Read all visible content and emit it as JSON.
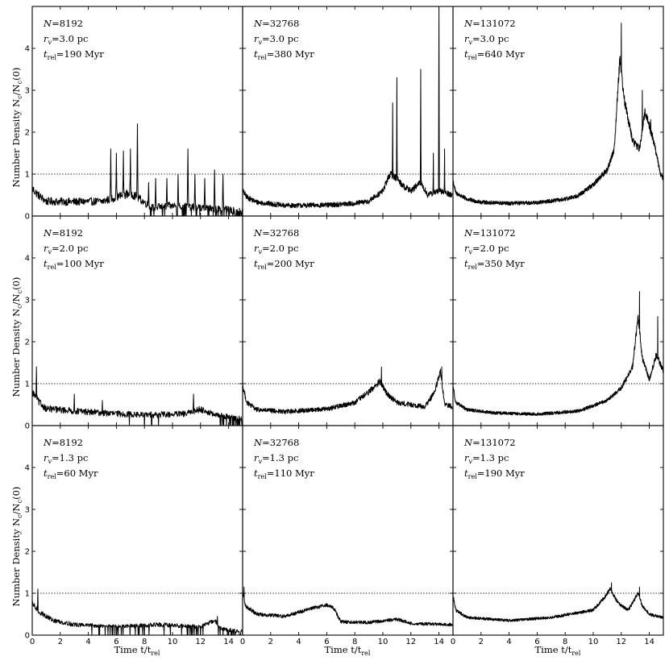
{
  "chart_data": {
    "type": "line",
    "layout": "3x3 grid, shared axes",
    "y_label_parts": [
      "Number Density ",
      "N",
      "c",
      "/",
      "N",
      "c",
      "(0)"
    ],
    "x_label_parts": [
      "Time ",
      "t",
      "/",
      "t",
      "rel"
    ],
    "xlim": [
      0,
      15
    ],
    "ylim": [
      0,
      5
    ],
    "x_ticks": [
      0,
      2,
      4,
      6,
      8,
      10,
      12,
      14
    ],
    "y_ticks": [
      0,
      1,
      2,
      3,
      4
    ],
    "reference_line": {
      "y": 1,
      "style": "dotted"
    },
    "annotation_parts": {
      "n": "N",
      "rv": "r",
      "rv_sub": "v",
      "t": "t",
      "t_sub": "rel"
    },
    "panels": [
      {
        "N": "=8192",
        "rv": "=3.0 pc",
        "trel": "=190 Myr",
        "profile": {
          "base": [
            [
              0,
              0.65
            ],
            [
              0.5,
              0.48
            ],
            [
              1,
              0.35
            ],
            [
              3,
              0.34
            ],
            [
              5,
              0.35
            ],
            [
              6,
              0.45
            ],
            [
              7,
              0.55
            ],
            [
              7.7,
              0.4
            ],
            [
              8.5,
              0.2
            ],
            [
              10,
              0.25
            ],
            [
              12,
              0.2
            ],
            [
              14,
              0.15
            ],
            [
              15,
              0.1
            ]
          ],
          "noise": 0.12,
          "density": 40,
          "floor": 0,
          "spikes": [
            [
              5.6,
              1.6
            ],
            [
              6.0,
              1.5
            ],
            [
              6.5,
              1.55
            ],
            [
              7.0,
              1.6
            ],
            [
              7.5,
              2.2
            ],
            [
              8.3,
              0.8
            ],
            [
              8.8,
              0.9
            ],
            [
              9.6,
              0.9
            ],
            [
              10.4,
              1.0
            ],
            [
              11.1,
              1.6
            ],
            [
              11.6,
              1.0
            ],
            [
              12.3,
              0.9
            ],
            [
              13.0,
              1.1
            ],
            [
              13.6,
              1.0
            ]
          ]
        }
      },
      {
        "N": "=32768",
        "rv": "=3.0 pc",
        "trel": "=380 Myr",
        "profile": {
          "base": [
            [
              0,
              0.6
            ],
            [
              0.3,
              0.45
            ],
            [
              1,
              0.33
            ],
            [
              3,
              0.25
            ],
            [
              6,
              0.26
            ],
            [
              8,
              0.3
            ],
            [
              9,
              0.35
            ],
            [
              10,
              0.6
            ],
            [
              10.5,
              1.0
            ],
            [
              11,
              0.9
            ],
            [
              11.5,
              0.7
            ],
            [
              12,
              0.6
            ],
            [
              12.7,
              0.8
            ],
            [
              13.2,
              0.5
            ],
            [
              14,
              0.6
            ],
            [
              15,
              0.5
            ]
          ],
          "noise": 0.08,
          "density": 60,
          "floor": 0.1,
          "spikes": [
            [
              10.7,
              2.7
            ],
            [
              11.0,
              3.3
            ],
            [
              12.7,
              3.5
            ],
            [
              13.6,
              1.5
            ],
            [
              14.0,
              5.0
            ],
            [
              14.4,
              1.6
            ]
          ]
        }
      },
      {
        "N": "=131072",
        "rv": "=3.0 pc",
        "trel": "=640 Myr",
        "profile": {
          "base": [
            [
              0,
              0.85
            ],
            [
              0.2,
              0.55
            ],
            [
              1,
              0.4
            ],
            [
              2,
              0.33
            ],
            [
              4,
              0.3
            ],
            [
              6,
              0.32
            ],
            [
              8,
              0.4
            ],
            [
              9,
              0.5
            ],
            [
              10,
              0.75
            ],
            [
              11,
              1.1
            ],
            [
              11.5,
              1.6
            ],
            [
              11.9,
              3.8
            ],
            [
              12.2,
              2.8
            ],
            [
              12.8,
              1.8
            ],
            [
              13.3,
              1.6
            ],
            [
              13.7,
              2.5
            ],
            [
              14.3,
              1.8
            ],
            [
              14.8,
              1.0
            ],
            [
              15,
              0.9
            ]
          ],
          "noise": 0.06,
          "density": 80,
          "floor": 0.15,
          "spikes": [
            [
              12.0,
              4.6
            ],
            [
              13.5,
              3.0
            ],
            [
              14.1,
              2.3
            ]
          ]
        }
      },
      {
        "N": "=8192",
        "rv": "=2.0 pc",
        "trel": "=100 Myr",
        "profile": {
          "base": [
            [
              0,
              0.8
            ],
            [
              0.5,
              0.55
            ],
            [
              1,
              0.4
            ],
            [
              3,
              0.35
            ],
            [
              5,
              0.3
            ],
            [
              8,
              0.25
            ],
            [
              11,
              0.28
            ],
            [
              12,
              0.4
            ],
            [
              13,
              0.25
            ],
            [
              15,
              0.15
            ]
          ],
          "noise": 0.1,
          "density": 40,
          "floor": 0,
          "spikes": [
            [
              0.3,
              1.4
            ],
            [
              3.0,
              0.75
            ],
            [
              5.0,
              0.6
            ],
            [
              11.5,
              0.75
            ]
          ]
        }
      },
      {
        "N": "=32768",
        "rv": "=2.0 pc",
        "trel": "=200 Myr",
        "profile": {
          "base": [
            [
              0,
              0.95
            ],
            [
              0.3,
              0.55
            ],
            [
              1,
              0.38
            ],
            [
              3,
              0.33
            ],
            [
              6,
              0.4
            ],
            [
              8,
              0.55
            ],
            [
              9,
              0.8
            ],
            [
              9.8,
              1.05
            ],
            [
              10.2,
              0.8
            ],
            [
              11,
              0.55
            ],
            [
              13,
              0.45
            ],
            [
              13.7,
              0.8
            ],
            [
              14.1,
              1.3
            ],
            [
              14.4,
              0.5
            ],
            [
              15,
              0.45
            ]
          ],
          "noise": 0.07,
          "density": 60,
          "floor": 0.1,
          "spikes": [
            [
              9.9,
              1.4
            ],
            [
              14.2,
              1.4
            ]
          ]
        }
      },
      {
        "N": "=131072",
        "rv": "=2.0 pc",
        "trel": "=350 Myr",
        "profile": {
          "base": [
            [
              0,
              0.95
            ],
            [
              0.2,
              0.55
            ],
            [
              1,
              0.38
            ],
            [
              3,
              0.3
            ],
            [
              6,
              0.27
            ],
            [
              9,
              0.35
            ],
            [
              11,
              0.6
            ],
            [
              12,
              0.9
            ],
            [
              12.8,
              1.4
            ],
            [
              13.2,
              2.6
            ],
            [
              13.5,
              1.6
            ],
            [
              14,
              1.1
            ],
            [
              14.5,
              1.7
            ],
            [
              15,
              1.3
            ]
          ],
          "noise": 0.05,
          "density": 80,
          "floor": 0.15,
          "spikes": [
            [
              13.3,
              3.2
            ],
            [
              14.6,
              2.6
            ]
          ]
        }
      },
      {
        "N": "=8192",
        "rv": "=1.3 pc",
        "trel": "=60 Myr",
        "profile": {
          "base": [
            [
              0,
              0.75
            ],
            [
              0.5,
              0.55
            ],
            [
              1.5,
              0.35
            ],
            [
              3,
              0.25
            ],
            [
              6,
              0.2
            ],
            [
              9,
              0.25
            ],
            [
              12,
              0.2
            ],
            [
              13,
              0.35
            ],
            [
              13.5,
              0.15
            ],
            [
              15,
              0.08
            ]
          ],
          "noise": 0.07,
          "density": 40,
          "floor": 0,
          "spikes": [
            [
              0.4,
              1.1
            ],
            [
              13.2,
              0.45
            ]
          ]
        }
      },
      {
        "N": "=32768",
        "rv": "=1.3 pc",
        "trel": "=110 Myr",
        "profile": {
          "base": [
            [
              0,
              1.0
            ],
            [
              0.2,
              0.7
            ],
            [
              1,
              0.5
            ],
            [
              3,
              0.45
            ],
            [
              5,
              0.65
            ],
            [
              6,
              0.72
            ],
            [
              6.5,
              0.65
            ],
            [
              7,
              0.32
            ],
            [
              9,
              0.3
            ],
            [
              11,
              0.38
            ],
            [
              12,
              0.28
            ],
            [
              15,
              0.25
            ]
          ],
          "noise": 0.05,
          "density": 60,
          "floor": 0.1,
          "spikes": [
            [
              0.1,
              1.15
            ]
          ]
        }
      },
      {
        "N": "=131072",
        "rv": "=1.3 pc",
        "trel": "=190 Myr",
        "profile": {
          "base": [
            [
              0,
              0.95
            ],
            [
              0.2,
              0.6
            ],
            [
              1,
              0.42
            ],
            [
              4,
              0.35
            ],
            [
              7,
              0.42
            ],
            [
              10,
              0.6
            ],
            [
              10.8,
              0.9
            ],
            [
              11.2,
              1.1
            ],
            [
              11.8,
              0.75
            ],
            [
              12.5,
              0.6
            ],
            [
              13.2,
              1.0
            ],
            [
              13.5,
              0.7
            ],
            [
              14,
              0.5
            ],
            [
              15,
              0.42
            ]
          ],
          "noise": 0.04,
          "density": 80,
          "floor": 0.2,
          "spikes": [
            [
              11.3,
              1.25
            ],
            [
              13.3,
              1.15
            ]
          ]
        }
      }
    ]
  }
}
